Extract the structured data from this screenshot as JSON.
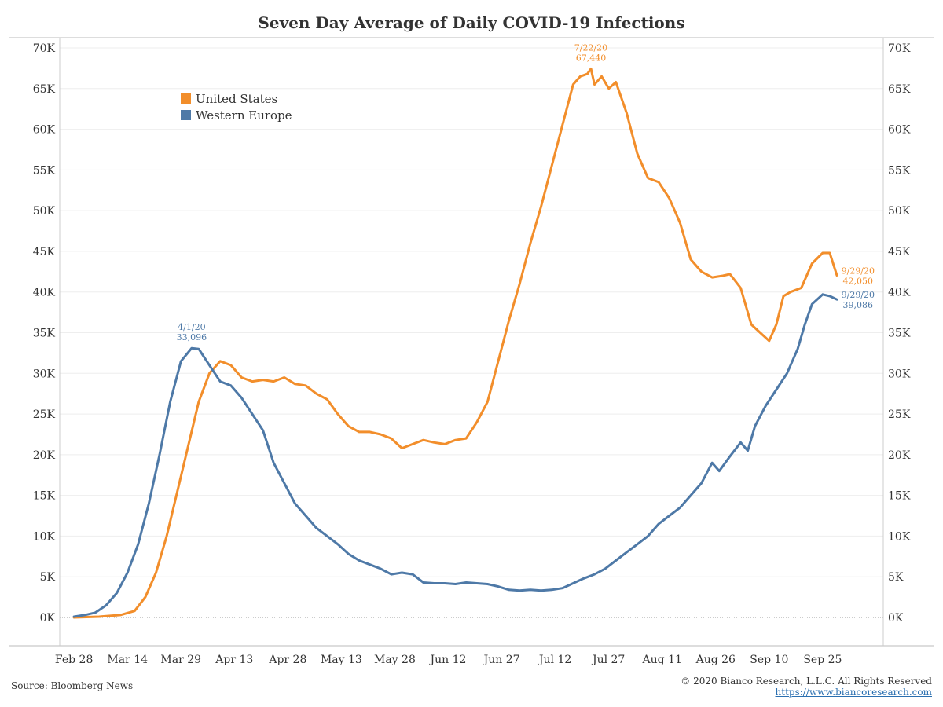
{
  "chart_data": {
    "type": "line",
    "title": "Seven Day Average of Daily COVID-19 Infections",
    "yticks": [
      "0K",
      "5K",
      "10K",
      "15K",
      "20K",
      "25K",
      "30K",
      "35K",
      "40K",
      "45K",
      "50K",
      "55K",
      "60K",
      "65K",
      "70K"
    ],
    "ylim": [
      0,
      70000
    ],
    "xlim": [
      "2020-02-24",
      "2020-10-12"
    ],
    "xticks": [
      {
        "label": "Feb 28",
        "date": "2020-02-28"
      },
      {
        "label": "Mar 14",
        "date": "2020-03-14"
      },
      {
        "label": "Mar 29",
        "date": "2020-03-29"
      },
      {
        "label": "Apr 13",
        "date": "2020-04-13"
      },
      {
        "label": "Apr 28",
        "date": "2020-04-28"
      },
      {
        "label": "May 13",
        "date": "2020-05-13"
      },
      {
        "label": "May 28",
        "date": "2020-05-28"
      },
      {
        "label": "Jun 12",
        "date": "2020-06-12"
      },
      {
        "label": "Jun 27",
        "date": "2020-06-27"
      },
      {
        "label": "Jul 12",
        "date": "2020-07-12"
      },
      {
        "label": "Jul 27",
        "date": "2020-07-27"
      },
      {
        "label": "Aug 11",
        "date": "2020-08-11"
      },
      {
        "label": "Aug 26",
        "date": "2020-08-26"
      },
      {
        "label": "Sep 10",
        "date": "2020-09-10"
      },
      {
        "label": "Sep 25",
        "date": "2020-09-25"
      }
    ],
    "grid": true,
    "legend_position": "top-left",
    "series": [
      {
        "name": "United States",
        "color": "#f28e2b",
        "points": [
          [
            "2020-02-28",
            0
          ],
          [
            "2020-03-06",
            100
          ],
          [
            "2020-03-12",
            300
          ],
          [
            "2020-03-16",
            800
          ],
          [
            "2020-03-19",
            2500
          ],
          [
            "2020-03-22",
            5500
          ],
          [
            "2020-03-25",
            10000
          ],
          [
            "2020-03-28",
            15500
          ],
          [
            "2020-03-31",
            21000
          ],
          [
            "2020-04-03",
            26500
          ],
          [
            "2020-04-06",
            30000
          ],
          [
            "2020-04-09",
            31500
          ],
          [
            "2020-04-12",
            31000
          ],
          [
            "2020-04-15",
            29500
          ],
          [
            "2020-04-18",
            29000
          ],
          [
            "2020-04-21",
            29200
          ],
          [
            "2020-04-24",
            29000
          ],
          [
            "2020-04-27",
            29500
          ],
          [
            "2020-04-30",
            28700
          ],
          [
            "2020-05-03",
            28500
          ],
          [
            "2020-05-06",
            27500
          ],
          [
            "2020-05-09",
            26800
          ],
          [
            "2020-05-12",
            25000
          ],
          [
            "2020-05-15",
            23500
          ],
          [
            "2020-05-18",
            22800
          ],
          [
            "2020-05-21",
            22800
          ],
          [
            "2020-05-24",
            22500
          ],
          [
            "2020-05-27",
            22000
          ],
          [
            "2020-05-30",
            20800
          ],
          [
            "2020-06-02",
            21300
          ],
          [
            "2020-06-05",
            21800
          ],
          [
            "2020-06-08",
            21500
          ],
          [
            "2020-06-11",
            21300
          ],
          [
            "2020-06-14",
            21800
          ],
          [
            "2020-06-17",
            22000
          ],
          [
            "2020-06-20",
            24000
          ],
          [
            "2020-06-23",
            26500
          ],
          [
            "2020-06-26",
            31500
          ],
          [
            "2020-06-29",
            36500
          ],
          [
            "2020-07-02",
            41000
          ],
          [
            "2020-07-05",
            46000
          ],
          [
            "2020-07-08",
            50500
          ],
          [
            "2020-07-11",
            55500
          ],
          [
            "2020-07-14",
            60500
          ],
          [
            "2020-07-17",
            65500
          ],
          [
            "2020-07-19",
            66500
          ],
          [
            "2020-07-21",
            66800
          ],
          [
            "2020-07-22",
            67440
          ],
          [
            "2020-07-23",
            65500
          ],
          [
            "2020-07-25",
            66500
          ],
          [
            "2020-07-27",
            65000
          ],
          [
            "2020-07-29",
            65800
          ],
          [
            "2020-08-01",
            62000
          ],
          [
            "2020-08-04",
            57000
          ],
          [
            "2020-08-07",
            54000
          ],
          [
            "2020-08-10",
            53500
          ],
          [
            "2020-08-13",
            51500
          ],
          [
            "2020-08-16",
            48500
          ],
          [
            "2020-08-19",
            44000
          ],
          [
            "2020-08-22",
            42500
          ],
          [
            "2020-08-25",
            41800
          ],
          [
            "2020-08-28",
            42000
          ],
          [
            "2020-08-30",
            42200
          ],
          [
            "2020-09-02",
            40500
          ],
          [
            "2020-09-05",
            36000
          ],
          [
            "2020-09-08",
            34800
          ],
          [
            "2020-09-10",
            34000
          ],
          [
            "2020-09-12",
            36000
          ],
          [
            "2020-09-14",
            39500
          ],
          [
            "2020-09-16",
            40000
          ],
          [
            "2020-09-19",
            40500
          ],
          [
            "2020-09-22",
            43500
          ],
          [
            "2020-09-25",
            44800
          ],
          [
            "2020-09-27",
            44800
          ],
          [
            "2020-09-29",
            42050
          ]
        ]
      },
      {
        "name": "Western Europe",
        "color": "#4e79a7",
        "points": [
          [
            "2020-02-28",
            100
          ],
          [
            "2020-03-02",
            300
          ],
          [
            "2020-03-05",
            600
          ],
          [
            "2020-03-08",
            1500
          ],
          [
            "2020-03-11",
            3000
          ],
          [
            "2020-03-14",
            5500
          ],
          [
            "2020-03-17",
            9000
          ],
          [
            "2020-03-20",
            14000
          ],
          [
            "2020-03-23",
            20000
          ],
          [
            "2020-03-26",
            26500
          ],
          [
            "2020-03-29",
            31500
          ],
          [
            "2020-04-01",
            33096
          ],
          [
            "2020-04-03",
            33000
          ],
          [
            "2020-04-06",
            31000
          ],
          [
            "2020-04-09",
            29000
          ],
          [
            "2020-04-12",
            28500
          ],
          [
            "2020-04-15",
            27000
          ],
          [
            "2020-04-18",
            25000
          ],
          [
            "2020-04-21",
            23000
          ],
          [
            "2020-04-24",
            19000
          ],
          [
            "2020-04-27",
            16500
          ],
          [
            "2020-04-30",
            14000
          ],
          [
            "2020-05-03",
            12500
          ],
          [
            "2020-05-06",
            11000
          ],
          [
            "2020-05-09",
            10000
          ],
          [
            "2020-05-12",
            9000
          ],
          [
            "2020-05-15",
            7800
          ],
          [
            "2020-05-18",
            7000
          ],
          [
            "2020-05-21",
            6500
          ],
          [
            "2020-05-24",
            6000
          ],
          [
            "2020-05-27",
            5300
          ],
          [
            "2020-05-30",
            5500
          ],
          [
            "2020-06-02",
            5300
          ],
          [
            "2020-06-05",
            4300
          ],
          [
            "2020-06-08",
            4200
          ],
          [
            "2020-06-11",
            4200
          ],
          [
            "2020-06-14",
            4100
          ],
          [
            "2020-06-17",
            4300
          ],
          [
            "2020-06-20",
            4200
          ],
          [
            "2020-06-23",
            4100
          ],
          [
            "2020-06-26",
            3800
          ],
          [
            "2020-06-29",
            3400
          ],
          [
            "2020-07-02",
            3300
          ],
          [
            "2020-07-05",
            3400
          ],
          [
            "2020-07-08",
            3300
          ],
          [
            "2020-07-11",
            3400
          ],
          [
            "2020-07-14",
            3600
          ],
          [
            "2020-07-17",
            4200
          ],
          [
            "2020-07-20",
            4800
          ],
          [
            "2020-07-23",
            5300
          ],
          [
            "2020-07-26",
            6000
          ],
          [
            "2020-07-29",
            7000
          ],
          [
            "2020-08-01",
            8000
          ],
          [
            "2020-08-04",
            9000
          ],
          [
            "2020-08-07",
            10000
          ],
          [
            "2020-08-10",
            11500
          ],
          [
            "2020-08-13",
            12500
          ],
          [
            "2020-08-16",
            13500
          ],
          [
            "2020-08-19",
            15000
          ],
          [
            "2020-08-22",
            16500
          ],
          [
            "2020-08-25",
            19000
          ],
          [
            "2020-08-27",
            18000
          ],
          [
            "2020-08-30",
            19800
          ],
          [
            "2020-09-02",
            21500
          ],
          [
            "2020-09-04",
            20500
          ],
          [
            "2020-09-06",
            23500
          ],
          [
            "2020-09-09",
            26000
          ],
          [
            "2020-09-12",
            28000
          ],
          [
            "2020-09-15",
            30000
          ],
          [
            "2020-09-18",
            33000
          ],
          [
            "2020-09-20",
            36000
          ],
          [
            "2020-09-22",
            38500
          ],
          [
            "2020-09-25",
            39700
          ],
          [
            "2020-09-27",
            39500
          ],
          [
            "2020-09-29",
            39086
          ]
        ]
      }
    ],
    "annotations": [
      {
        "series": "United States",
        "date": "2020-07-22",
        "value": 67440,
        "line1": "7/22/20",
        "line2": "67,440",
        "position": "above"
      },
      {
        "series": "Western Europe",
        "date": "2020-04-01",
        "value": 33096,
        "line1": "4/1/20",
        "line2": "33,096",
        "position": "above"
      },
      {
        "series": "United States",
        "date": "2020-09-29",
        "value": 42050,
        "line1": "9/29/20",
        "line2": "42,050",
        "position": "right"
      },
      {
        "series": "Western Europe",
        "date": "2020-09-29",
        "value": 39086,
        "line1": "9/29/20",
        "line2": "39,086",
        "position": "right"
      }
    ]
  },
  "footer": {
    "source": "Source: Bloomberg News",
    "copyright": "© 2020 Bianco Research, L.L.C. All Rights Reserved",
    "url": "https://www.biancoresearch.com"
  }
}
